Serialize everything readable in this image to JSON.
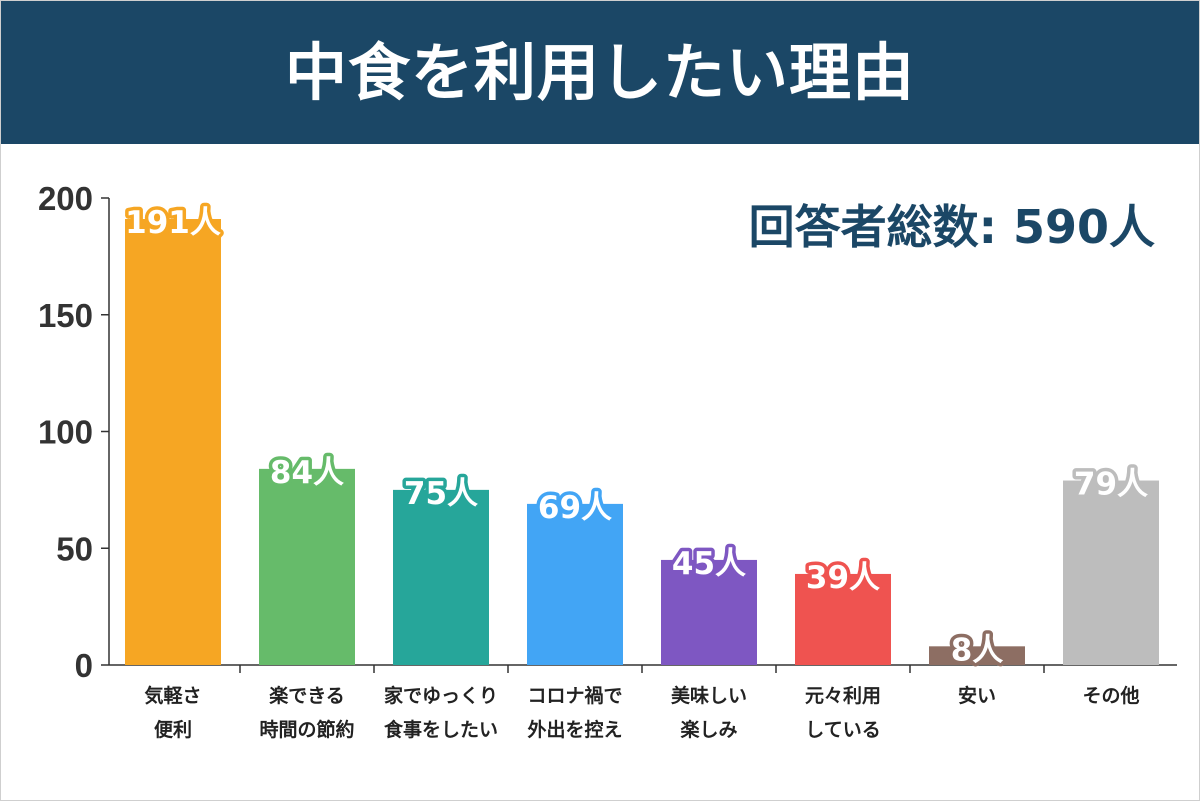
{
  "title": "中食を利用したい理由",
  "total_label": "回答者総数: 590人",
  "colors": {
    "header_bg": "#1b4766",
    "title_text": "#ffffff",
    "total_text": "#1b4766"
  },
  "chart_data": {
    "type": "bar",
    "title": "中食を利用したい理由",
    "xlabel": "",
    "ylabel": "",
    "ylim": [
      0,
      200
    ],
    "yticks": [
      0,
      50,
      100,
      150,
      200
    ],
    "grid": false,
    "legend": "none",
    "value_suffix": "人",
    "categories": [
      {
        "lines": [
          "気軽さ",
          "便利"
        ],
        "value": 191,
        "label": "191人",
        "color": "#f6a623"
      },
      {
        "lines": [
          "楽できる",
          "時間の節約"
        ],
        "value": 84,
        "label": "84人",
        "color": "#66bb6a"
      },
      {
        "lines": [
          "家でゆっくり",
          "食事をしたい"
        ],
        "value": 75,
        "label": "75人",
        "color": "#26a69a"
      },
      {
        "lines": [
          "コロナ禍で",
          "外出を控え"
        ],
        "value": 69,
        "label": "69人",
        "color": "#42a5f5"
      },
      {
        "lines": [
          "美味しい",
          "楽しみ"
        ],
        "value": 45,
        "label": "45人",
        "color": "#7e57c2"
      },
      {
        "lines": [
          "元々利用",
          "している"
        ],
        "value": 39,
        "label": "39人",
        "color": "#ef5350"
      },
      {
        "lines": [
          "安い"
        ],
        "value": 8,
        "label": "8人",
        "color": "#8d6e63"
      },
      {
        "lines": [
          "その他"
        ],
        "value": 79,
        "label": "79人",
        "color": "#bdbdbd"
      }
    ]
  }
}
